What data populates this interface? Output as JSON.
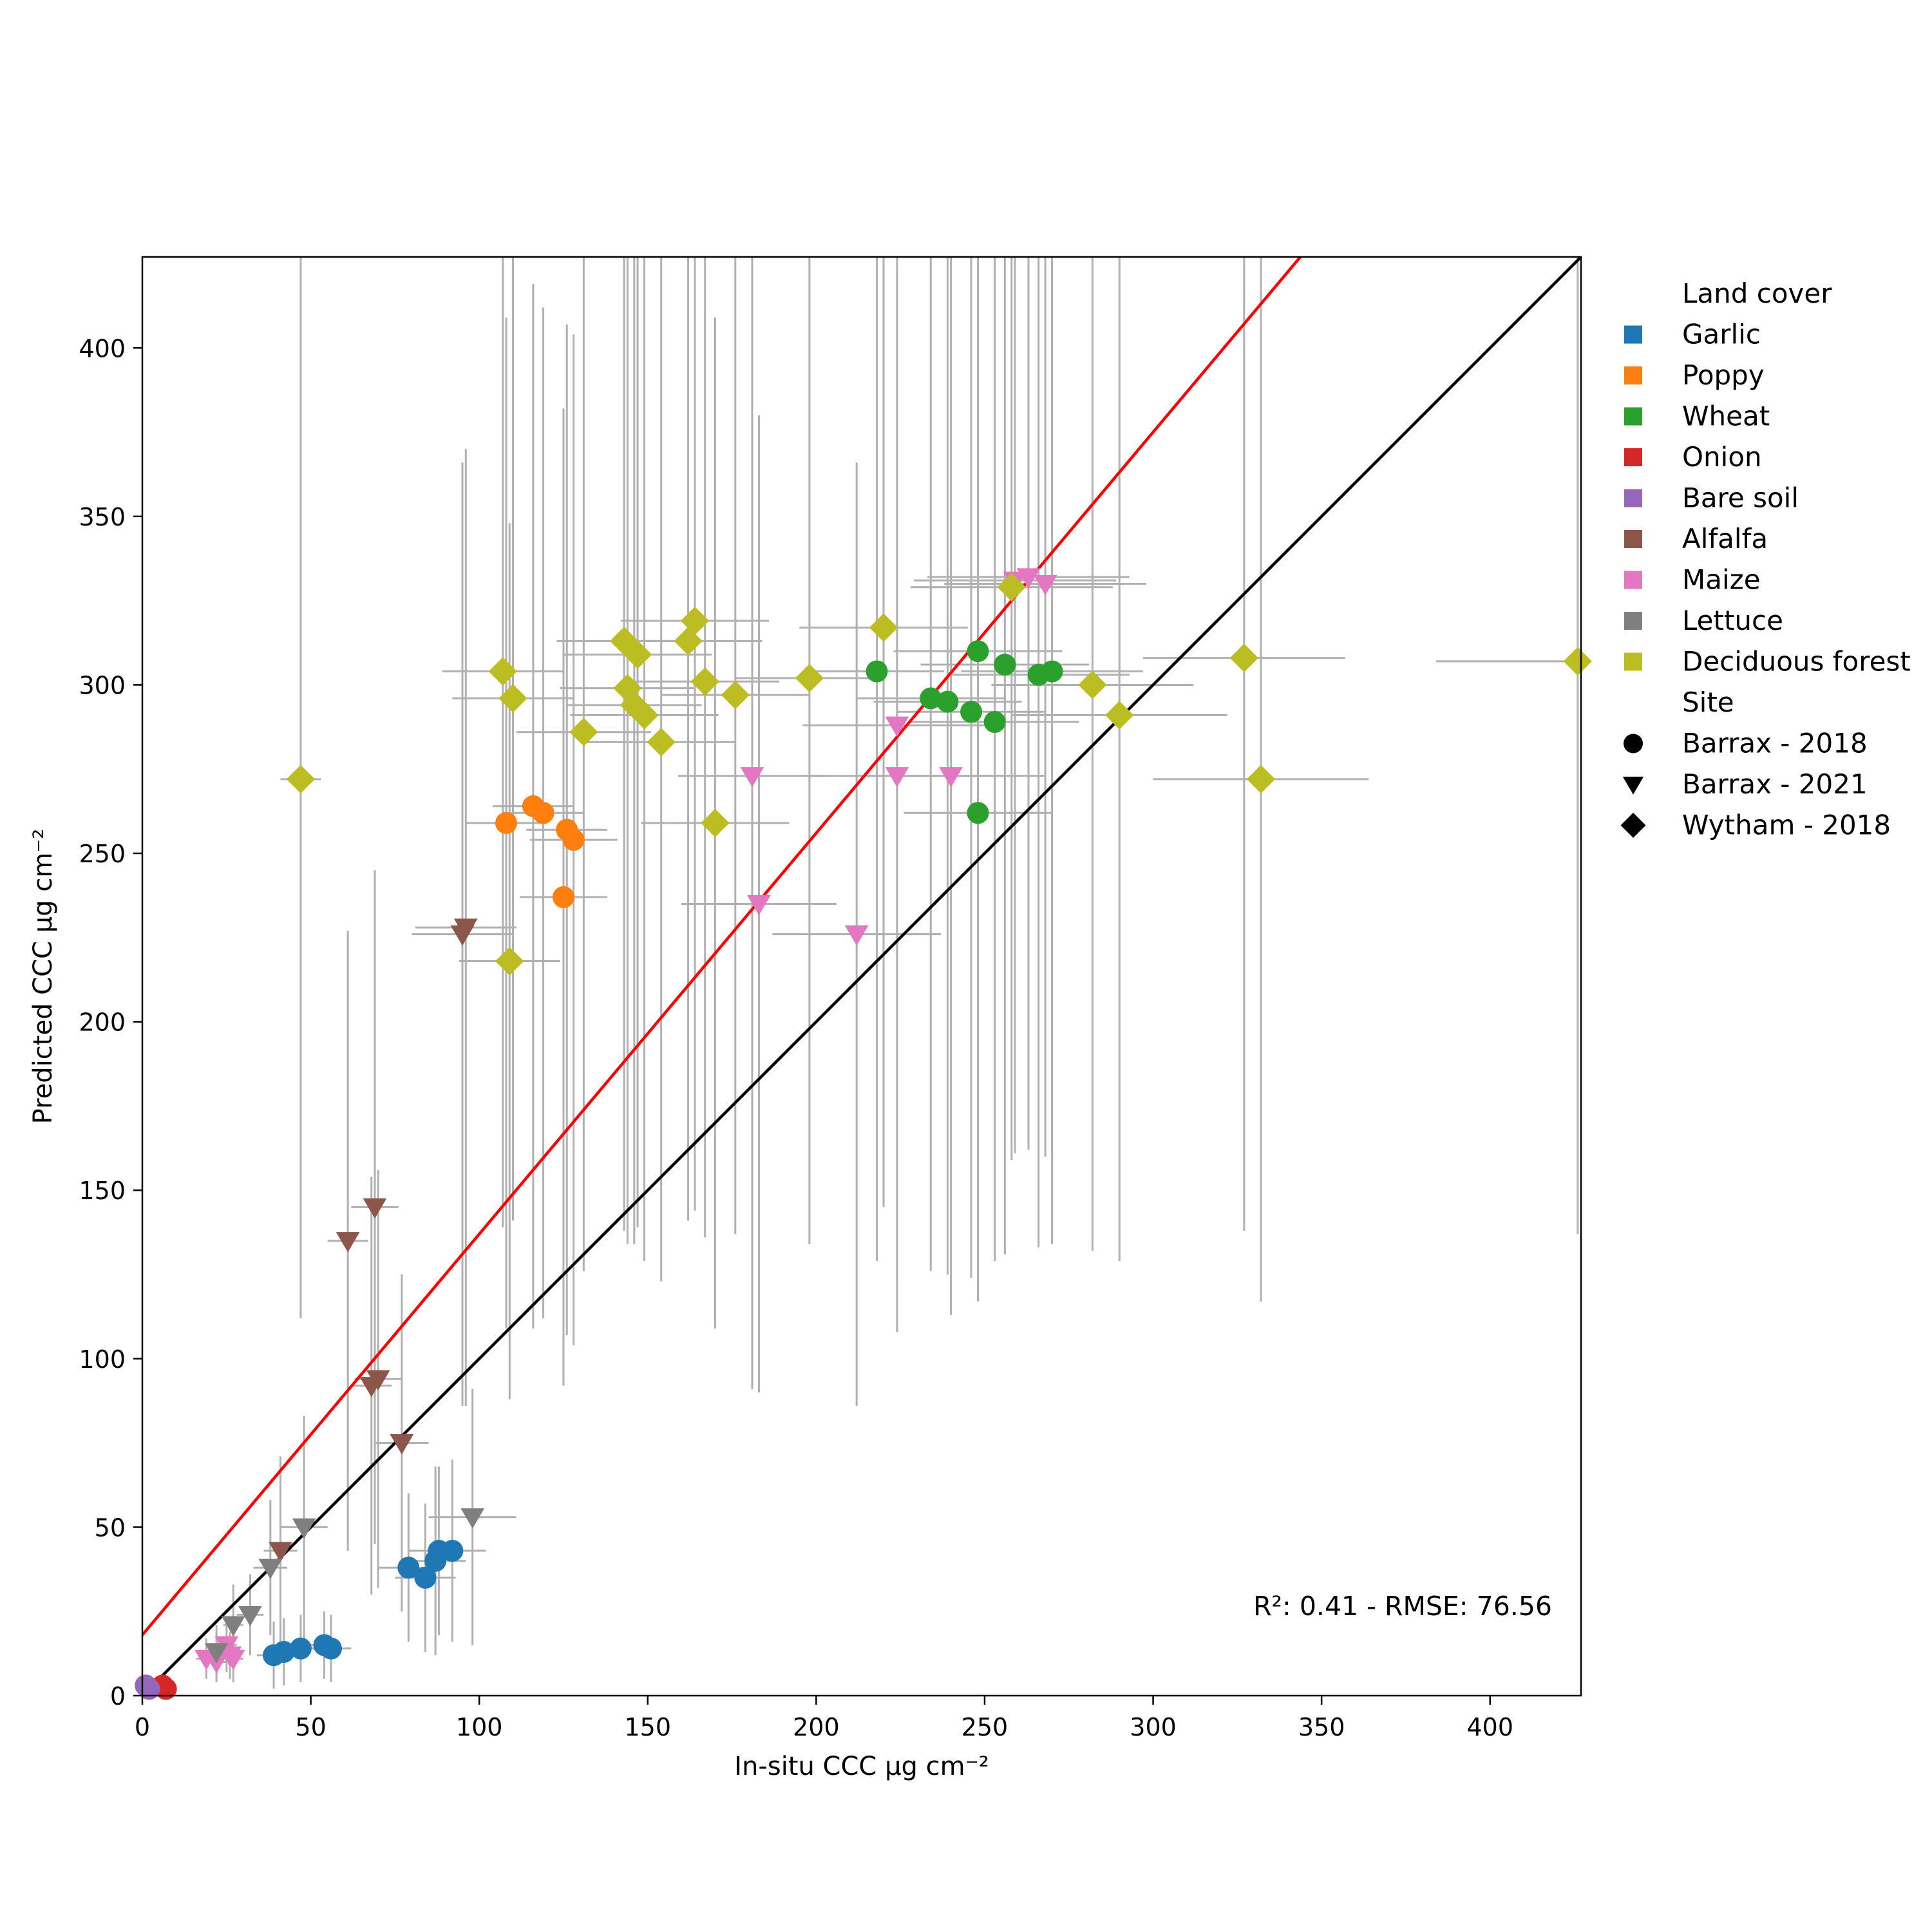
{
  "chart_data": {
    "type": "scatter",
    "xlabel": "In-situ CCC",
    "ylabel": "Predicted CCC",
    "unit": "μg cm⁻²",
    "xlim": [
      0,
      427
    ],
    "ylim": [
      0,
      427
    ],
    "xticks": [
      0,
      50,
      100,
      150,
      200,
      250,
      300,
      350,
      400
    ],
    "yticks": [
      0,
      50,
      100,
      150,
      200,
      250,
      300,
      350,
      400
    ],
    "grid": false,
    "annotation": "R²: 0.41 - RMSE: 76.56",
    "legend": {
      "position": "outside-right",
      "land_cover_title": "Land cover",
      "site_title": "Site",
      "land_cover": [
        {
          "name": "Garlic",
          "color": "#1f77b4"
        },
        {
          "name": "Poppy",
          "color": "#ff7f0e"
        },
        {
          "name": "Wheat",
          "color": "#2ca02c"
        },
        {
          "name": "Onion",
          "color": "#d62728"
        },
        {
          "name": "Bare soil",
          "color": "#9467bd"
        },
        {
          "name": "Alfalfa",
          "color": "#8c564b"
        },
        {
          "name": "Maize",
          "color": "#e377c2"
        },
        {
          "name": "Lettuce",
          "color": "#7f7f7f"
        },
        {
          "name": "Deciduous forest",
          "color": "#bcbd22"
        }
      ],
      "sites": [
        {
          "name": "Barrax - 2018",
          "marker": "circle"
        },
        {
          "name": "Barrax - 2021",
          "marker": "triangle-down"
        },
        {
          "name": "Wytham - 2018",
          "marker": "diamond"
        }
      ]
    },
    "lines": [
      {
        "name": "1:1 line",
        "color": "#000000",
        "slope": 1,
        "intercept": 0
      },
      {
        "name": "regression line",
        "color": "#ff0000",
        "slope": 1.19,
        "intercept": 18
      }
    ],
    "errorbar_color": "#b0b0b0",
    "series": [
      {
        "name": "Garlic",
        "site": "Barrax - 2018",
        "color": "#1f77b4",
        "marker": "circle",
        "points": [
          {
            "x": 39,
            "y": 12,
            "xerr": 5,
            "yerr": 10
          },
          {
            "x": 42,
            "y": 13,
            "xerr": 5,
            "yerr": 10
          },
          {
            "x": 47,
            "y": 14,
            "xerr": 5,
            "yerr": 10
          },
          {
            "x": 54,
            "y": 15,
            "xerr": 5,
            "yerr": 10
          },
          {
            "x": 56,
            "y": 14,
            "xerr": 6,
            "yerr": 10
          },
          {
            "x": 79,
            "y": 38,
            "xerr": 9,
            "yerr": 22
          },
          {
            "x": 84,
            "y": 35,
            "xerr": 9,
            "yerr": 22
          },
          {
            "x": 87,
            "y": 40,
            "xerr": 9,
            "yerr": 28
          },
          {
            "x": 88,
            "y": 43,
            "xerr": 9,
            "yerr": 25
          },
          {
            "x": 92,
            "y": 43,
            "xerr": 10,
            "yerr": 27
          }
        ]
      },
      {
        "name": "Poppy",
        "site": "Barrax - 2018",
        "color": "#ff7f0e",
        "marker": "circle",
        "points": [
          {
            "x": 108,
            "y": 259,
            "xerr": 12,
            "yerr": 150
          },
          {
            "x": 116,
            "y": 264,
            "xerr": 12,
            "yerr": 155
          },
          {
            "x": 119,
            "y": 262,
            "xerr": 12,
            "yerr": 150
          },
          {
            "x": 126,
            "y": 257,
            "xerr": 12,
            "yerr": 150
          },
          {
            "x": 128,
            "y": 254,
            "xerr": 13,
            "yerr": 150
          },
          {
            "x": 125,
            "y": 237,
            "xerr": 13,
            "yerr": 145
          }
        ]
      },
      {
        "name": "Wheat",
        "site": "Barrax - 2018",
        "color": "#2ca02c",
        "marker": "circle",
        "points": [
          {
            "x": 218,
            "y": 304,
            "xerr": 20,
            "yerr": 175
          },
          {
            "x": 234,
            "y": 296,
            "xerr": 22,
            "yerr": 170
          },
          {
            "x": 239,
            "y": 295,
            "xerr": 22,
            "yerr": 170
          },
          {
            "x": 246,
            "y": 292,
            "xerr": 22,
            "yerr": 168
          },
          {
            "x": 248,
            "y": 310,
            "xerr": 25,
            "yerr": 175
          },
          {
            "x": 248,
            "y": 262,
            "xerr": 22,
            "yerr": 145
          },
          {
            "x": 253,
            "y": 289,
            "xerr": 25,
            "yerr": 160
          },
          {
            "x": 256,
            "y": 306,
            "xerr": 25,
            "yerr": 175
          },
          {
            "x": 266,
            "y": 303,
            "xerr": 27,
            "yerr": 170
          },
          {
            "x": 270,
            "y": 304,
            "xerr": 27,
            "yerr": 170
          }
        ]
      },
      {
        "name": "Onion",
        "site": "Barrax - 2018",
        "color": "#d62728",
        "marker": "circle",
        "points": [
          {
            "x": 6,
            "y": 3,
            "xerr": 1,
            "yerr": 1
          },
          {
            "x": 7,
            "y": 2,
            "xerr": 1,
            "yerr": 1
          }
        ]
      },
      {
        "name": "Bare soil",
        "site": "Barrax - 2018",
        "color": "#9467bd",
        "marker": "circle",
        "points": [
          {
            "x": 1,
            "y": 3,
            "xerr": 0,
            "yerr": 0
          },
          {
            "x": 2,
            "y": 2,
            "xerr": 0,
            "yerr": 0
          }
        ]
      },
      {
        "name": "Alfalfa",
        "site": "Barrax - 2021",
        "color": "#8c564b",
        "marker": "triangle-down",
        "points": [
          {
            "x": 41,
            "y": 43,
            "xerr": 5,
            "yerr": 28
          },
          {
            "x": 61,
            "y": 135,
            "xerr": 6,
            "yerr": 92
          },
          {
            "x": 69,
            "y": 145,
            "xerr": 7,
            "yerr": 100
          },
          {
            "x": 68,
            "y": 92,
            "xerr": 6,
            "yerr": 62
          },
          {
            "x": 70,
            "y": 94,
            "xerr": 7,
            "yerr": 62
          },
          {
            "x": 77,
            "y": 75,
            "xerr": 8,
            "yerr": 50
          },
          {
            "x": 95,
            "y": 226,
            "xerr": 15,
            "yerr": 140
          },
          {
            "x": 96,
            "y": 228,
            "xerr": 15,
            "yerr": 142
          }
        ]
      },
      {
        "name": "Maize",
        "site": "Barrax - 2021",
        "color": "#e377c2",
        "marker": "triangle-down",
        "points": [
          {
            "x": 19,
            "y": 11,
            "xerr": 3,
            "yerr": 6
          },
          {
            "x": 22,
            "y": 10,
            "xerr": 3,
            "yerr": 6
          },
          {
            "x": 25,
            "y": 15,
            "xerr": 3,
            "yerr": 8
          },
          {
            "x": 26,
            "y": 12,
            "xerr": 3,
            "yerr": 7
          },
          {
            "x": 27,
            "y": 11,
            "xerr": 3,
            "yerr": 7
          },
          {
            "x": 181,
            "y": 273,
            "xerr": 22,
            "yerr": 182
          },
          {
            "x": 183,
            "y": 235,
            "xerr": 23,
            "yerr": 145
          },
          {
            "x": 212,
            "y": 226,
            "xerr": 25,
            "yerr": 140
          },
          {
            "x": 224,
            "y": 288,
            "xerr": 28,
            "yerr": 180
          },
          {
            "x": 224,
            "y": 273,
            "xerr": 28,
            "yerr": 150
          },
          {
            "x": 240,
            "y": 273,
            "xerr": 28,
            "yerr": 160
          },
          {
            "x": 259,
            "y": 331,
            "xerr": 30,
            "yerr": 170
          },
          {
            "x": 263,
            "y": 332,
            "xerr": 30,
            "yerr": 170
          },
          {
            "x": 268,
            "y": 330,
            "xerr": 30,
            "yerr": 170
          }
        ]
      },
      {
        "name": "Lettuce",
        "site": "Barrax - 2021",
        "color": "#7f7f7f",
        "marker": "triangle-down",
        "points": [
          {
            "x": 22,
            "y": 13,
            "xerr": 3,
            "yerr": 8
          },
          {
            "x": 27,
            "y": 21,
            "xerr": 3,
            "yerr": 12
          },
          {
            "x": 32,
            "y": 24,
            "xerr": 4,
            "yerr": 12
          },
          {
            "x": 38,
            "y": 38,
            "xerr": 5,
            "yerr": 20
          },
          {
            "x": 48,
            "y": 50,
            "xerr": 7,
            "yerr": 33
          },
          {
            "x": 98,
            "y": 53,
            "xerr": 13,
            "yerr": 38
          }
        ]
      },
      {
        "name": "Deciduous forest",
        "site": "Wytham - 2018",
        "color": "#bcbd22",
        "marker": "diamond",
        "points": [
          {
            "x": 47,
            "y": 272,
            "xerr": 6,
            "yerr": 160
          },
          {
            "x": 107,
            "y": 304,
            "xerr": 18,
            "yerr": 165
          },
          {
            "x": 109,
            "y": 218,
            "xerr": 15,
            "yerr": 130
          },
          {
            "x": 110,
            "y": 296,
            "xerr": 18,
            "yerr": 155
          },
          {
            "x": 131,
            "y": 286,
            "xerr": 20,
            "yerr": 160
          },
          {
            "x": 143,
            "y": 313,
            "xerr": 20,
            "yerr": 175
          },
          {
            "x": 144,
            "y": 299,
            "xerr": 20,
            "yerr": 165
          },
          {
            "x": 146,
            "y": 294,
            "xerr": 20,
            "yerr": 160
          },
          {
            "x": 147,
            "y": 309,
            "xerr": 22,
            "yerr": 170
          },
          {
            "x": 149,
            "y": 291,
            "xerr": 22,
            "yerr": 162
          },
          {
            "x": 154,
            "y": 283,
            "xerr": 22,
            "yerr": 160
          },
          {
            "x": 162,
            "y": 313,
            "xerr": 22,
            "yerr": 172
          },
          {
            "x": 164,
            "y": 319,
            "xerr": 22,
            "yerr": 175
          },
          {
            "x": 167,
            "y": 301,
            "xerr": 22,
            "yerr": 165
          },
          {
            "x": 170,
            "y": 259,
            "xerr": 22,
            "yerr": 150
          },
          {
            "x": 176,
            "y": 297,
            "xerr": 22,
            "yerr": 160
          },
          {
            "x": 198,
            "y": 302,
            "xerr": 22,
            "yerr": 168
          },
          {
            "x": 220,
            "y": 317,
            "xerr": 25,
            "yerr": 172
          },
          {
            "x": 258,
            "y": 329,
            "xerr": 30,
            "yerr": 170
          },
          {
            "x": 282,
            "y": 300,
            "xerr": 30,
            "yerr": 168
          },
          {
            "x": 290,
            "y": 291,
            "xerr": 32,
            "yerr": 162
          },
          {
            "x": 327,
            "y": 308,
            "xerr": 30,
            "yerr": 170
          },
          {
            "x": 332,
            "y": 272,
            "xerr": 32,
            "yerr": 155
          },
          {
            "x": 426,
            "y": 307,
            "xerr": 42,
            "yerr": 170
          }
        ]
      }
    ]
  }
}
